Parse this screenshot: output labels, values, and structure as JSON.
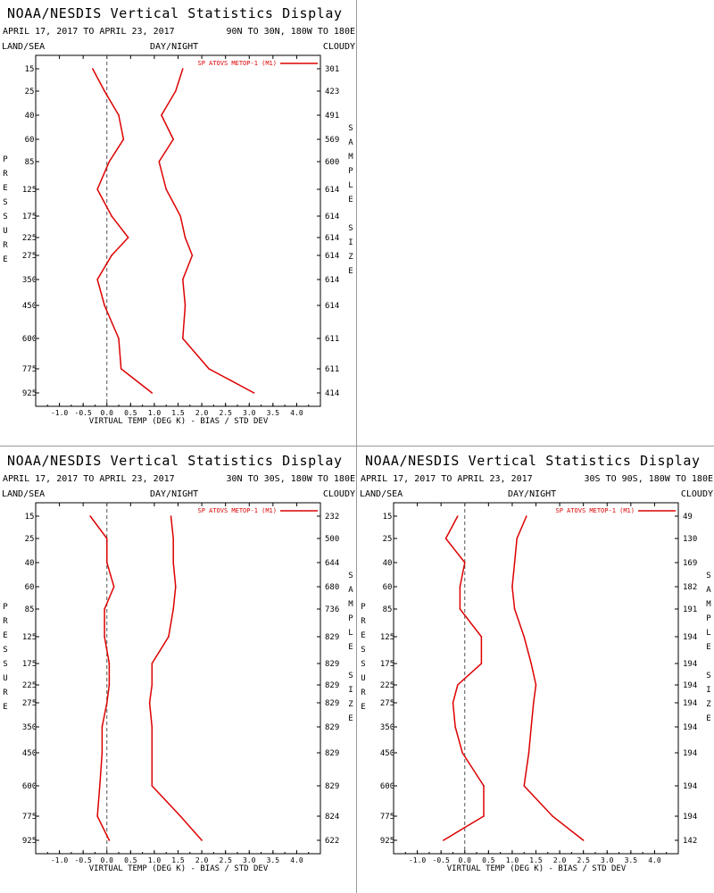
{
  "pressure_levels": [
    15,
    25,
    40,
    60,
    85,
    125,
    175,
    225,
    275,
    350,
    450,
    600,
    775,
    925
  ],
  "x_ticks": [
    -1.0,
    -0.5,
    0.0,
    0.5,
    1.0,
    1.5,
    2.0,
    2.5,
    3.0,
    3.5,
    4.0
  ],
  "x_tick_labels": [
    "-1.0",
    "-0.5",
    "0.0",
    "0.5",
    "1.0",
    "1.5",
    "2.0",
    "2.5",
    "3.0",
    "3.5",
    "4.0"
  ],
  "colors": {
    "series": "#dd0000",
    "axis": "#000000",
    "zero_line": "#555555"
  },
  "chart_data": [
    {
      "type": "line",
      "title": "NOAA/NESDIS Vertical Statistics Display",
      "date_range": "APRIL 17, 2017 TO APRIL 23, 2017",
      "region": "90N TO 30N, 180W TO 180E",
      "land_sea": "LAND/SEA",
      "day_night": "DAY/NIGHT",
      "cloudy": "CLOUDY",
      "xlabel": "VIRTUAL TEMP (DEG K) - BIAS / STD DEV",
      "ylabel": "PRESSURE",
      "y2label": "SAMPLE SIZE",
      "legend": "SP ATOVS METOP-1 (M1)",
      "xlim": [
        -1.5,
        4.5
      ],
      "pressure": [
        15,
        25,
        40,
        60,
        85,
        125,
        175,
        225,
        275,
        350,
        450,
        600,
        775,
        925
      ],
      "sample_size": [
        "301",
        "423",
        "491",
        "569",
        "600",
        "614",
        "614",
        "614",
        "614",
        "614",
        "614",
        "611",
        "611",
        "414"
      ],
      "series": [
        {
          "name": "BIAS",
          "values": [
            -0.3,
            -0.05,
            0.25,
            0.35,
            0.05,
            -0.2,
            0.1,
            0.45,
            0.1,
            -0.2,
            -0.05,
            0.25,
            0.3,
            0.95
          ]
        },
        {
          "name": "STD DEV",
          "values": [
            1.6,
            1.45,
            1.15,
            1.4,
            1.1,
            1.25,
            1.55,
            1.65,
            1.8,
            1.6,
            1.65,
            1.6,
            2.15,
            3.1
          ]
        }
      ]
    },
    {
      "type": "line",
      "title": "NOAA/NESDIS Vertical Statistics Display",
      "date_range": "APRIL 17, 2017 TO APRIL 23, 2017",
      "region": "30N TO 30S, 180W TO 180E",
      "land_sea": "LAND/SEA",
      "day_night": "DAY/NIGHT",
      "cloudy": "CLOUDY",
      "xlabel": "VIRTUAL TEMP (DEG K) - BIAS / STD DEV",
      "ylabel": "PRESSURE",
      "y2label": "SAMPLE SIZE",
      "legend": "SP ATOVS METOP-1 (M1)",
      "xlim": [
        -1.5,
        4.5
      ],
      "pressure": [
        15,
        25,
        40,
        60,
        85,
        125,
        175,
        225,
        275,
        350,
        450,
        600,
        775,
        925
      ],
      "sample_size": [
        "232",
        "500",
        "644",
        "680",
        "736",
        "829",
        "829",
        "829",
        "829",
        "829",
        "829",
        "829",
        "824",
        "622"
      ],
      "series": [
        {
          "name": "BIAS",
          "values": [
            -0.35,
            0.0,
            0.0,
            0.15,
            -0.05,
            -0.05,
            0.05,
            0.05,
            0.0,
            -0.1,
            -0.1,
            -0.15,
            -0.2,
            0.05
          ]
        },
        {
          "name": "STD DEV",
          "values": [
            1.35,
            1.4,
            1.4,
            1.45,
            1.4,
            1.3,
            0.95,
            0.95,
            0.9,
            0.95,
            0.95,
            0.95,
            1.55,
            2.0
          ]
        }
      ]
    },
    {
      "type": "line",
      "title": "NOAA/NESDIS Vertical Statistics Display",
      "date_range": "APRIL 17, 2017 TO APRIL 23, 2017",
      "region": "30S TO 90S, 180W TO 180E",
      "land_sea": "LAND/SEA",
      "day_night": "DAY/NIGHT",
      "cloudy": "CLOUDY",
      "xlabel": "VIRTUAL TEMP (DEG K) - BIAS / STD DEV",
      "ylabel": "PRESSURE",
      "y2label": "SAMPLE SIZE",
      "legend": "SP ATOVS METOP-1 (M1)",
      "xlim": [
        -1.5,
        4.5
      ],
      "pressure": [
        15,
        25,
        40,
        60,
        85,
        125,
        175,
        225,
        275,
        350,
        450,
        600,
        775,
        925
      ],
      "sample_size": [
        "49",
        "130",
        "169",
        "182",
        "191",
        "194",
        "194",
        "194",
        "194",
        "194",
        "194",
        "194",
        "194",
        "142"
      ],
      "series": [
        {
          "name": "BIAS",
          "values": [
            -0.15,
            -0.4,
            0.0,
            -0.1,
            -0.1,
            0.35,
            0.35,
            -0.15,
            -0.25,
            -0.2,
            -0.05,
            0.4,
            0.4,
            -0.45
          ]
        },
        {
          "name": "STD DEV",
          "values": [
            1.3,
            1.1,
            1.05,
            1.0,
            1.05,
            1.25,
            1.4,
            1.5,
            1.45,
            1.4,
            1.35,
            1.25,
            1.85,
            2.5
          ]
        }
      ]
    }
  ]
}
